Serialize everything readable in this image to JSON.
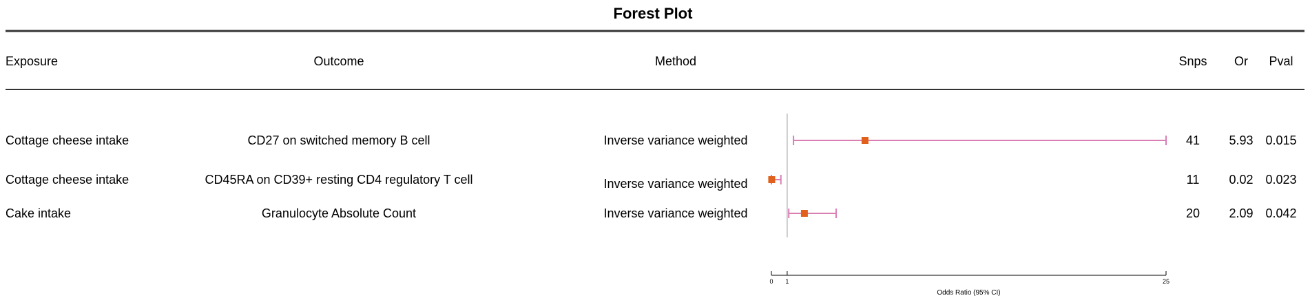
{
  "chart_data": {
    "type": "forest",
    "title": "Forest Plot",
    "columns": {
      "exposure": "Exposure",
      "outcome": "Outcome",
      "method": "Method",
      "snps": "Snps",
      "or": "Or",
      "pval": "Pval"
    },
    "rows": [
      {
        "exposure": "Cottage cheese intake",
        "outcome": "CD27 on switched memory B cell",
        "method": "Inverse variance weighted",
        "snps": "41",
        "or_label": "5.93",
        "pval": "0.015",
        "or": 5.93,
        "ci_low": 1.4,
        "ci_high": 25
      },
      {
        "exposure": "Cottage cheese intake",
        "outcome": "CD45RA on CD39+ resting CD4 regulatory T cell",
        "method": "Inverse variance weighted",
        "snps": "11",
        "or_label": "0.02",
        "pval": "0.023",
        "or": 0.02,
        "ci_low": 0.0,
        "ci_high": 0.6
      },
      {
        "exposure": "Cake intake",
        "outcome": "Granulocyte Absolute Count",
        "method": "Inverse variance weighted",
        "snps": "20",
        "or_label": "2.09",
        "pval": "0.042",
        "or": 2.09,
        "ci_low": 1.1,
        "ci_high": 4.1
      }
    ],
    "x_axis": {
      "label": "Odds Ratio (95% CI)",
      "ticks": [
        0,
        1,
        25
      ],
      "range": [
        0,
        25
      ],
      "reference_line": 1
    },
    "colors": {
      "ci": "#d97fb4",
      "point": "#e0601c",
      "reference": "#999999",
      "rule": "#333333"
    }
  }
}
